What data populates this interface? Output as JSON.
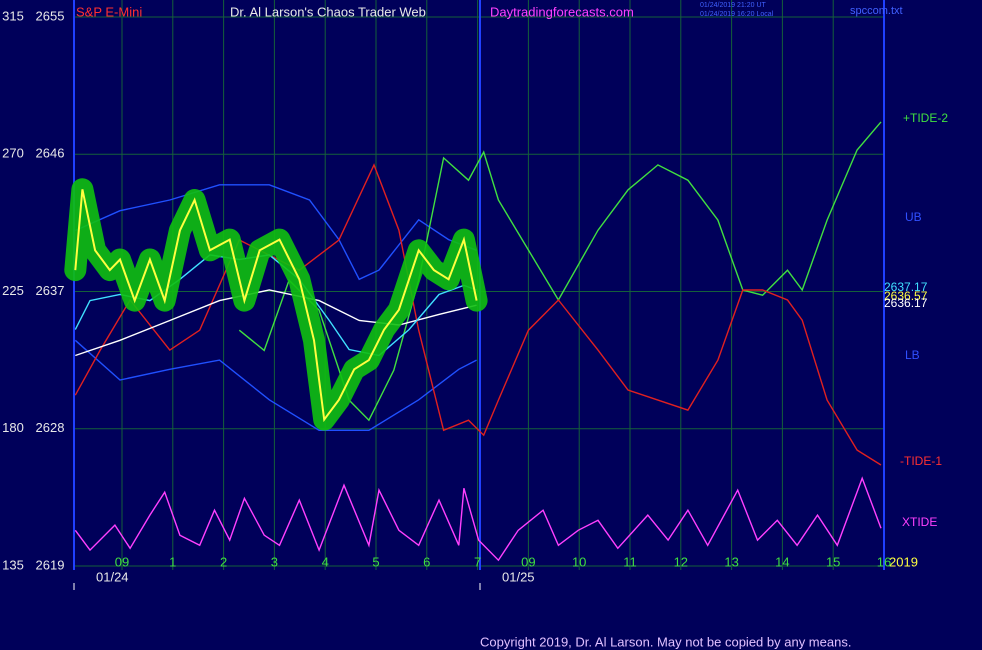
{
  "chart_data": {
    "type": "line",
    "symbol": "S&P E-Mini",
    "title": "Dr. Al Larson's Chaos Trader Web",
    "website": "Daytradingforecasts.com",
    "timestamps": [
      "01/24/2019 21:20 UT",
      "01/24/2019 16:20 Local"
    ],
    "file": "spccom.txt",
    "copyright": "Copyright 2019, Dr. Al Larson. May not be copied by any means.",
    "year": "2019",
    "date_labels": [
      "01/24",
      "01/25"
    ],
    "grid": true,
    "xlim": [
      -0.92,
      14.94
    ],
    "xticks": [
      {
        "value": 0,
        "label": "09"
      },
      1,
      2,
      3,
      4,
      5,
      6,
      7,
      {
        "value": 8,
        "label": "09"
      },
      {
        "value": 9,
        "label": "10"
      },
      {
        "value": 10,
        "label": "11"
      },
      {
        "value": 11,
        "label": "12"
      },
      {
        "value": 12,
        "label": "13"
      },
      {
        "value": 13,
        "label": "14"
      },
      {
        "value": 14,
        "label": "15"
      },
      {
        "value": 15,
        "label": "16"
      }
    ],
    "ylim": [
      2619,
      2655
    ],
    "yticks": [
      2619,
      2628,
      2637,
      2646,
      2655
    ],
    "y2lim": [
      135,
      315
    ],
    "y2ticks": [
      135,
      180,
      225,
      270,
      315
    ],
    "annotations": [
      {
        "text": "+TIDE-2",
        "color": "#40e040"
      },
      {
        "text": "UB",
        "color": "#3050ff"
      },
      {
        "value": 2637.17,
        "color": "#40e0ff"
      },
      {
        "value": 2636.57,
        "color": "#ffff40"
      },
      {
        "value": 2636.17,
        "color": "#ffffff"
      },
      {
        "text": "LB",
        "color": "#3050ff"
      },
      {
        "text": "-TIDE-1",
        "color": "#ff3030"
      },
      {
        "text": "XTIDE",
        "color": "#ff40ff"
      }
    ],
    "series": [
      {
        "color": "#2050ff",
        "x": [
          -0.92,
          -0.04,
          0.94,
          1.92,
          2.9,
          3.69,
          4.27,
          4.67,
          5.06,
          5.84,
          6.43,
          6.98
        ],
        "values": [
          2641,
          2642.3,
          2643,
          2644,
          2644,
          2643,
          2640.4,
          2637.8,
          2638.4,
          2641.7,
          2640.4,
          2639.7
        ]
      },
      {
        "color": "#2050ff",
        "x": [
          -0.92,
          -0.04,
          0.94,
          1.92,
          2.9,
          3.88,
          4.86,
          5.84,
          6.63,
          6.98
        ],
        "values": [
          2633.8,
          2631.2,
          2631.9,
          2632.5,
          2629.9,
          2627.9,
          2627.9,
          2629.9,
          2631.9,
          2632.5
        ]
      },
      {
        "color": "#40e040",
        "axis": "y2",
        "x": [
          2.31,
          2.8,
          3.29,
          3.88,
          4.47,
          4.86,
          5.35,
          5.84,
          6.33,
          6.82,
          7.12,
          7.41,
          8,
          8.59,
          9.37,
          9.96,
          10.55,
          11.14,
          11.73,
          12.22,
          12.61,
          13.1,
          13.39,
          13.88,
          14.47,
          14.94
        ],
        "values": [
          212.3,
          205.7,
          228.7,
          218.9,
          189.4,
          182.8,
          199.2,
          228.7,
          268.8,
          261.5,
          270.7,
          255,
          238.6,
          222.2,
          245.1,
          258.3,
          266.5,
          261.5,
          248.4,
          225.5,
          223.8,
          232,
          225.5,
          248.4,
          271.4,
          280.6
        ]
      },
      {
        "color": "#e02020",
        "axis": "y2",
        "x": [
          -0.92,
          -0.43,
          0.16,
          0.94,
          1.53,
          2.31,
          3.49,
          4.27,
          4.96,
          5.45,
          5.84,
          6.33,
          6.82,
          7.12,
          7.41,
          8,
          8.59,
          9.37,
          9.96,
          10.55,
          11.14,
          11.73,
          12.22,
          12.61,
          13.1,
          13.39,
          13.88,
          14.47,
          14.94
        ],
        "values": [
          191,
          205.8,
          222.2,
          205.8,
          212.3,
          241.9,
          232,
          241.9,
          266.5,
          245.1,
          212.3,
          179.5,
          182.8,
          177.9,
          189.4,
          212.3,
          222.2,
          205.8,
          192.7,
          189.4,
          186.1,
          202.5,
          225.5,
          225.5,
          222.2,
          215.6,
          189.4,
          173,
          168.1
        ]
      },
      {
        "color": "#ff40ff",
        "axis": "y2",
        "x": [
          -0.92,
          -0.63,
          -0.14,
          0.16,
          0.55,
          0.84,
          1.14,
          1.53,
          1.82,
          2.12,
          2.41,
          2.8,
          3.1,
          3.49,
          3.88,
          4.37,
          4.86,
          5.06,
          5.45,
          5.84,
          6.24,
          6.63,
          6.73,
          7.02,
          7.41,
          7.8,
          8.29,
          8.59,
          8.98,
          9.37,
          9.76,
          10.35,
          10.75,
          11.14,
          11.53,
          12.12,
          12.51,
          12.9,
          13.29,
          13.69,
          14.08,
          14.57,
          14.94
        ],
        "values": [
          146.7,
          140.2,
          148.4,
          140.8,
          151.7,
          159.2,
          145.1,
          141.8,
          153.3,
          143.5,
          157.2,
          145.1,
          141.8,
          156.6,
          140.2,
          161.5,
          141.8,
          159.9,
          146.7,
          141.8,
          156.6,
          141.8,
          160.5,
          143.5,
          136.9,
          146.7,
          153.3,
          141.8,
          146.7,
          150,
          140.8,
          151.7,
          143.5,
          153.3,
          141.8,
          159.9,
          143.5,
          150,
          141.8,
          151.7,
          141.8,
          163.8,
          147.4
        ]
      },
      {
        "color": "#ffffff",
        "x": [
          -0.92,
          -0.04,
          0.94,
          1.92,
          2.9,
          3.88,
          4.67,
          5.45,
          6.24,
          6.98
        ],
        "values": [
          2632.8,
          2633.8,
          2635.1,
          2636.4,
          2637.1,
          2636.4,
          2635.1,
          2634.8,
          2635.5,
          2636.1
        ]
      },
      {
        "color": "#40e0ff",
        "x": [
          -0.92,
          -0.63,
          -0.04,
          0.55,
          1.14,
          1.73,
          2.31,
          2.9,
          3.49,
          4.08,
          4.47,
          5.06,
          5.65,
          6.24,
          6.73,
          6.98
        ],
        "values": [
          2634.5,
          2636.4,
          2636.8,
          2636.4,
          2637.8,
          2639.4,
          2639.1,
          2639.4,
          2637.8,
          2635.1,
          2633.2,
          2632.8,
          2634.5,
          2636.8,
          2637.4,
          2637.1
        ]
      },
      {
        "color": "#ffff40",
        "glow": "#10c010",
        "x": [
          -0.92,
          -0.78,
          -0.53,
          -0.24,
          -0.04,
          0.25,
          0.55,
          0.84,
          1.14,
          1.43,
          1.73,
          2.12,
          2.41,
          2.71,
          3.1,
          3.49,
          3.78,
          3.98,
          4.27,
          4.57,
          4.86,
          5.16,
          5.45,
          5.84,
          6.14,
          6.43,
          6.73,
          6.98
        ],
        "values": [
          2638.4,
          2643.7,
          2639.7,
          2638.4,
          2639.1,
          2636.4,
          2639.1,
          2636.4,
          2641,
          2643,
          2639.7,
          2640.4,
          2636.4,
          2639.7,
          2640.4,
          2637.8,
          2633.8,
          2628.6,
          2629.9,
          2631.9,
          2632.5,
          2634.5,
          2635.8,
          2639.7,
          2638.4,
          2637.8,
          2640.4,
          2636.4
        ]
      }
    ]
  }
}
